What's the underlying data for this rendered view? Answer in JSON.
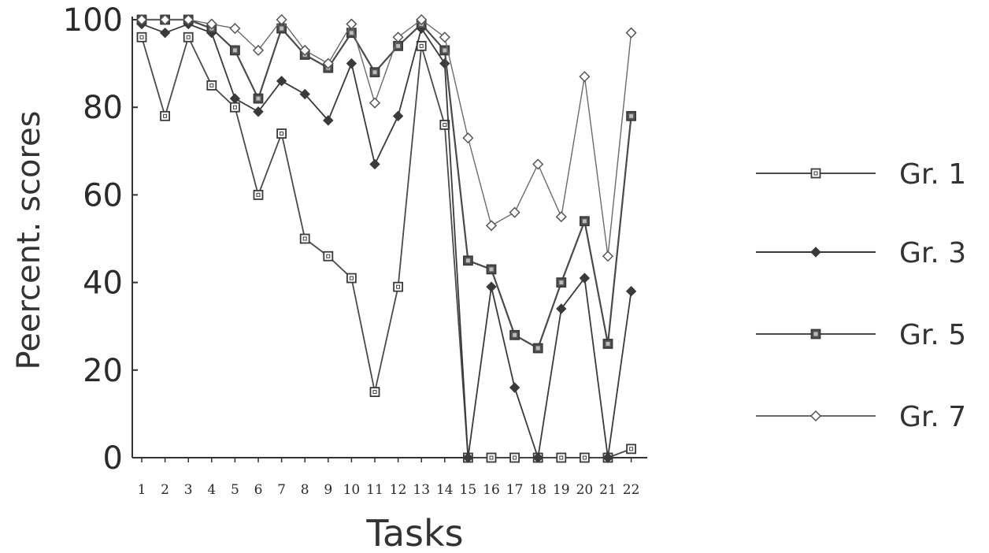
{
  "chart_data": {
    "type": "line",
    "xlabel": "Tasks",
    "ylabel": "Peercent. scores",
    "ylim": [
      0,
      100
    ],
    "yticks": [
      0,
      20,
      40,
      60,
      80,
      100
    ],
    "categories": [
      "1",
      "2",
      "3",
      "4",
      "5",
      "6",
      "7",
      "8",
      "9",
      "10",
      "11",
      "12",
      "13",
      "14",
      "15",
      "16",
      "17",
      "18",
      "19",
      "20",
      "21",
      "22"
    ],
    "legend_position": "right",
    "grid": false,
    "series": [
      {
        "name": "Gr. 1",
        "marker": "square-open",
        "values": [
          96,
          78,
          96,
          85,
          80,
          60,
          74,
          50,
          46,
          41,
          15,
          39,
          94,
          76,
          0,
          0,
          0,
          0,
          0,
          0,
          0,
          2
        ]
      },
      {
        "name": "Gr. 3",
        "marker": "diamond-filled",
        "values": [
          99,
          97,
          99,
          97,
          82,
          79,
          86,
          83,
          77,
          90,
          67,
          78,
          98,
          90,
          0,
          39,
          16,
          0,
          34,
          41,
          0,
          38
        ]
      },
      {
        "name": "Gr. 5",
        "marker": "square-filled",
        "values": [
          100,
          100,
          100,
          98,
          93,
          82,
          98,
          92,
          89,
          97,
          88,
          94,
          99,
          93,
          45,
          43,
          28,
          25,
          40,
          54,
          26,
          78
        ]
      },
      {
        "name": "Gr. 7",
        "marker": "diamond-open",
        "values": [
          100,
          100,
          100,
          99,
          98,
          93,
          100,
          93,
          90,
          99,
          81,
          96,
          100,
          96,
          73,
          53,
          56,
          67,
          55,
          87,
          46,
          97
        ]
      }
    ]
  }
}
